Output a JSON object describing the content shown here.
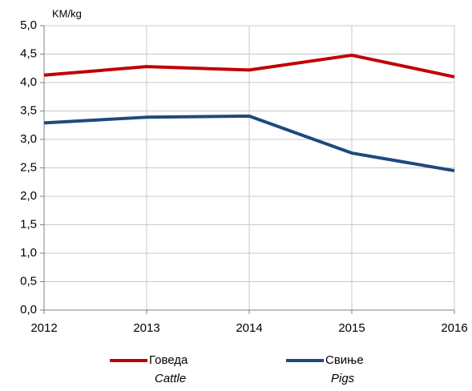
{
  "chart_data": {
    "type": "line",
    "y_unit": "KM/kg",
    "x": [
      2012,
      2013,
      2014,
      2015,
      2016
    ],
    "xlim": [
      2012,
      2016
    ],
    "xticks": [
      2012,
      2013,
      2014,
      2015,
      2016
    ],
    "ylim": [
      0,
      5
    ],
    "yticks": [
      {
        "value": 0,
        "label": "0,0"
      },
      {
        "value": 0.5,
        "label": "0,5"
      },
      {
        "value": 1,
        "label": "1,0"
      },
      {
        "value": 1.5,
        "label": "1,5"
      },
      {
        "value": 2,
        "label": "2,0"
      },
      {
        "value": 2.5,
        "label": "2,5"
      },
      {
        "value": 3,
        "label": "3,0"
      },
      {
        "value": 3.5,
        "label": "3,5"
      },
      {
        "value": 4,
        "label": "4,0"
      },
      {
        "value": 4.5,
        "label": "4,5"
      },
      {
        "value": 5,
        "label": "5,0"
      }
    ],
    "grid": true,
    "series": [
      {
        "name": "Говеда",
        "name_en": "Cattle",
        "color": "#c00000",
        "values": [
          4.13,
          4.28,
          4.22,
          4.48,
          4.1
        ]
      },
      {
        "name": "Свиње",
        "name_en": "Pigs",
        "color": "#1f497d",
        "values": [
          3.29,
          3.39,
          3.41,
          2.76,
          2.45
        ]
      }
    ]
  }
}
